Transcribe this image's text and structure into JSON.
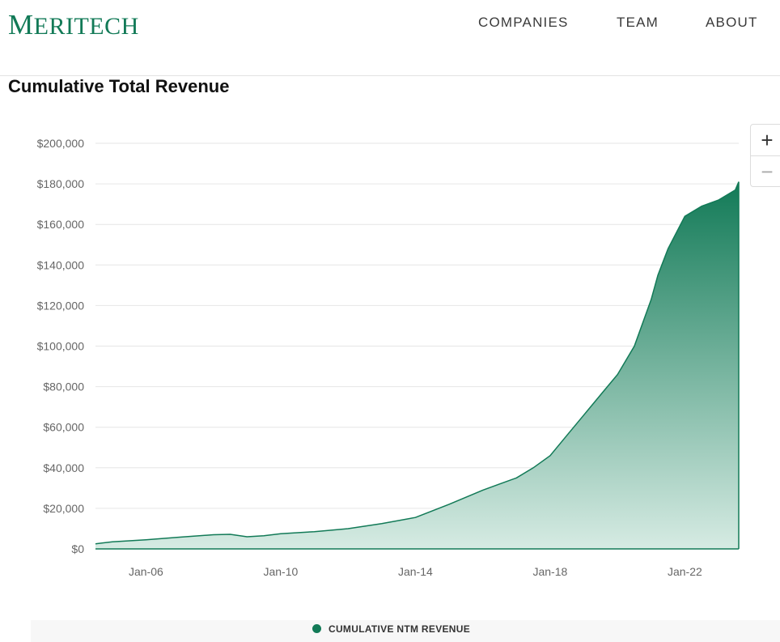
{
  "header": {
    "logo_initial": "M",
    "logo_rest": "ERITECH",
    "nav": [
      "COMPANIES",
      "TEAM",
      "ABOUT"
    ]
  },
  "zoom": {
    "in": "+",
    "out": "−"
  },
  "colors": {
    "brand": "#127a57",
    "area_top": "#127a57",
    "area_bottom": "#d6ebe3"
  },
  "chart_data": {
    "type": "area",
    "title": "Cumulative Total Revenue",
    "xlabel": "",
    "ylabel": "",
    "ylim": [
      0,
      200000
    ],
    "yticks": [
      0,
      20000,
      40000,
      60000,
      80000,
      100000,
      120000,
      140000,
      160000,
      180000,
      200000
    ],
    "ytick_labels": [
      "$0",
      "$20,000",
      "$40,000",
      "$60,000",
      "$80,000",
      "$100,000",
      "$120,000",
      "$140,000",
      "$160,000",
      "$180,000",
      "$200,000"
    ],
    "xticks": [
      "Jan-06",
      "Jan-10",
      "Jan-14",
      "Jan-18",
      "Jan-22"
    ],
    "xtick_values": [
      2006.0,
      2010.0,
      2014.0,
      2018.0,
      2022.0
    ],
    "xlim": [
      2004.5,
      2023.6
    ],
    "grid": true,
    "legend_position": "bottom",
    "series": [
      {
        "name": "CUMULATIVE NTM REVENUE",
        "x": [
          2004.5,
          2005.0,
          2006.0,
          2007.0,
          2008.0,
          2008.5,
          2009.0,
          2009.5,
          2010.0,
          2011.0,
          2012.0,
          2013.0,
          2014.0,
          2015.0,
          2016.0,
          2016.5,
          2017.0,
          2017.5,
          2018.0,
          2018.5,
          2019.0,
          2019.5,
          2020.0,
          2020.5,
          2021.0,
          2021.2,
          2021.5,
          2022.0,
          2022.5,
          2023.0,
          2023.5,
          2023.6
        ],
        "y": [
          2500,
          3500,
          4500,
          5800,
          7000,
          7200,
          6000,
          6500,
          7500,
          8500,
          10000,
          12500,
          15500,
          22000,
          29000,
          32000,
          35000,
          40000,
          46000,
          56000,
          66000,
          76000,
          86000,
          100000,
          123000,
          135000,
          148000,
          164000,
          169000,
          172000,
          177000,
          181000
        ]
      }
    ]
  },
  "legend": {
    "label": "CUMULATIVE NTM REVENUE"
  }
}
